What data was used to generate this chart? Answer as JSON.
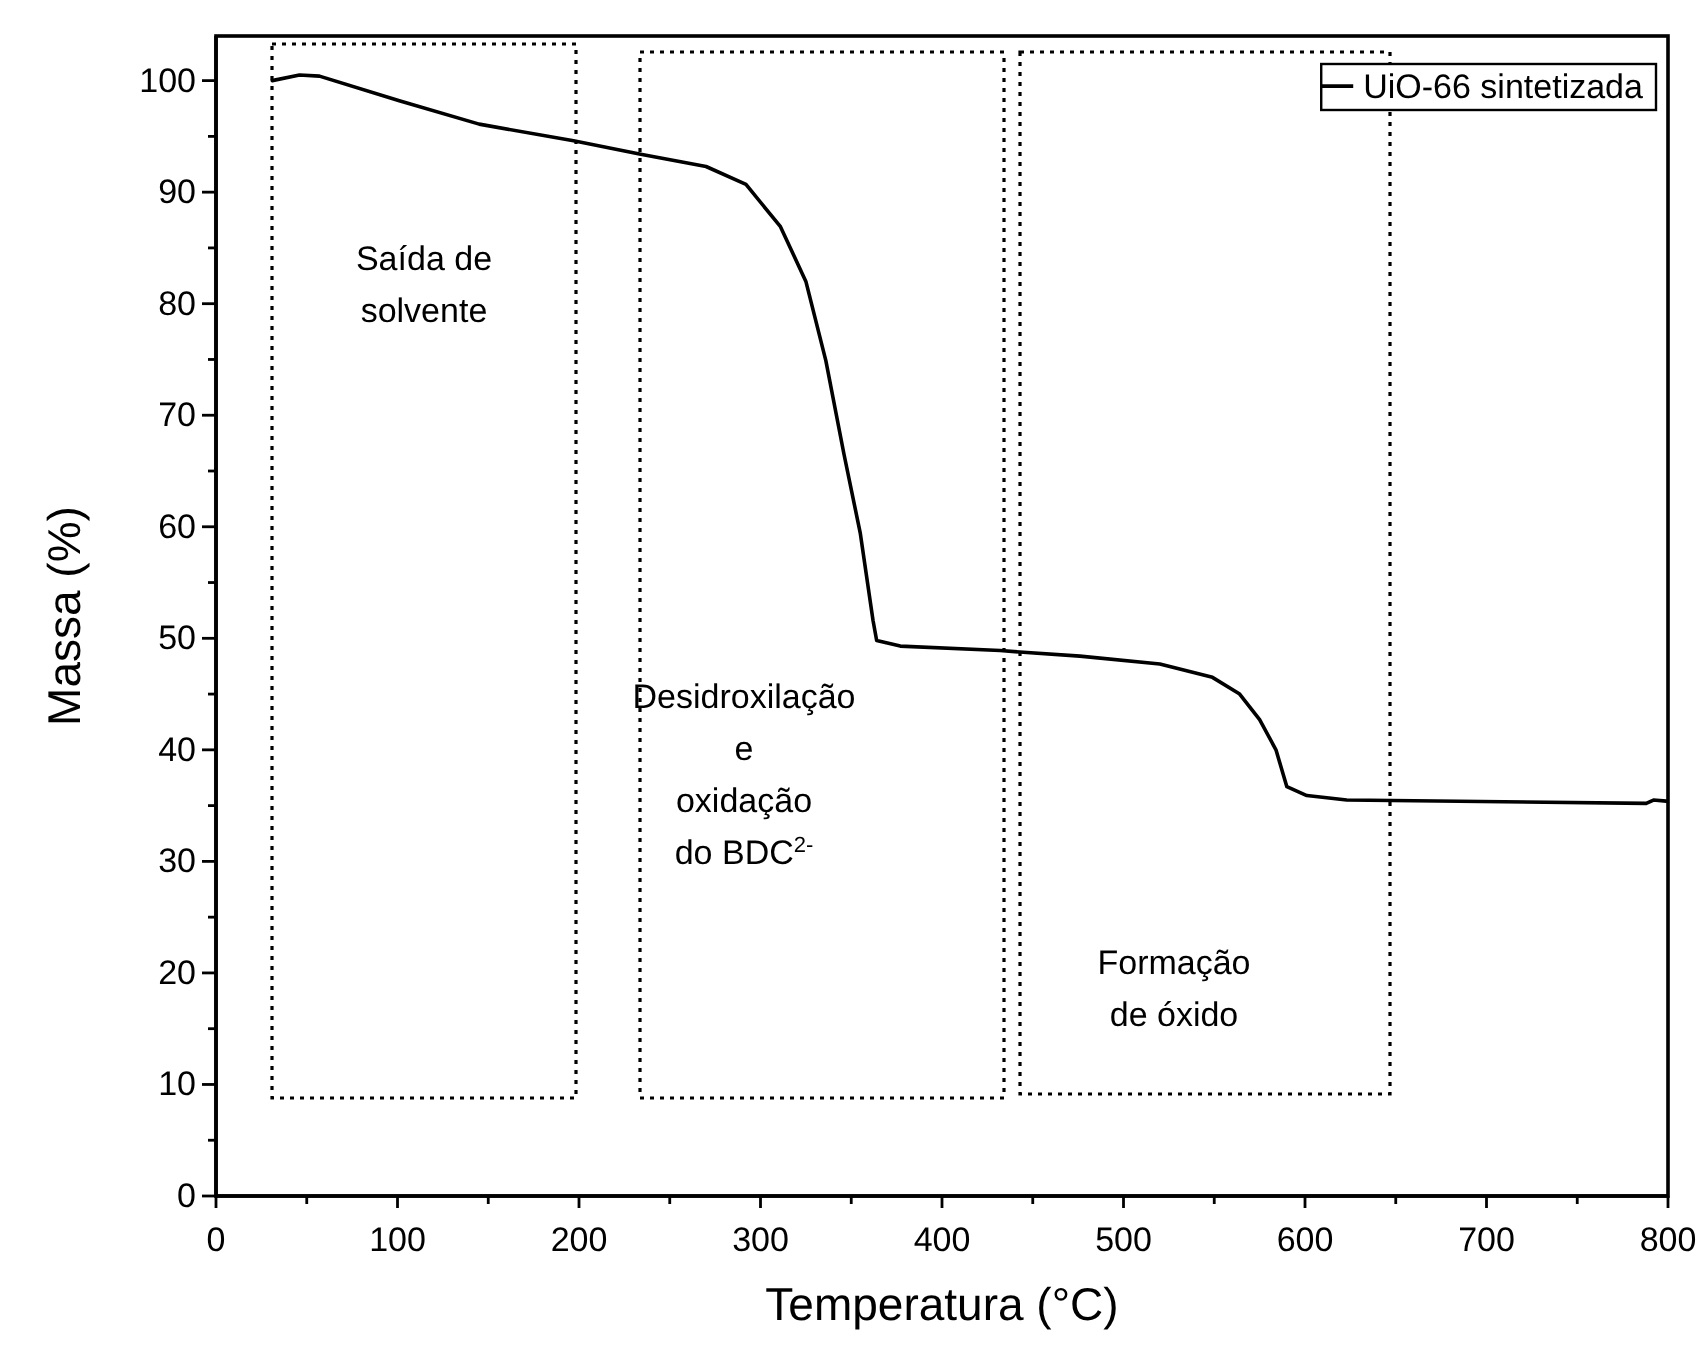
{
  "chart_data": {
    "type": "line",
    "xlabel": "Temperatura (°C)",
    "ylabel": "Massa (%)",
    "xlim": [
      0,
      800
    ],
    "ylim": [
      0,
      104
    ],
    "xticks": [
      0,
      {
        "value": 50,
        "label": null
      },
      100,
      {
        "value": 150,
        "label": null
      },
      200,
      {
        "value": 250,
        "label": null
      },
      300,
      {
        "value": 350,
        "label": null
      },
      400,
      {
        "value": 450,
        "label": null
      },
      500,
      {
        "value": 550,
        "label": null
      },
      600,
      {
        "value": 650,
        "label": null
      },
      700,
      {
        "value": 750,
        "label": null
      },
      800
    ],
    "yticks": [
      0,
      {
        "value": 5,
        "label": null
      },
      10,
      {
        "value": 15,
        "label": null
      },
      20,
      {
        "value": 25,
        "label": null
      },
      30,
      {
        "value": 35,
        "label": null
      },
      40,
      {
        "value": 45,
        "label": null
      },
      50,
      {
        "value": 55,
        "label": null
      },
      60,
      {
        "value": 65,
        "label": null
      },
      70,
      {
        "value": 75,
        "label": null
      },
      80,
      {
        "value": 85,
        "label": null
      },
      90,
      {
        "value": 95,
        "label": null
      },
      100
    ],
    "legend": "top right",
    "line_style": "solid",
    "marker": "none",
    "grid": false,
    "series": [
      {
        "name": "UiO-66 sintetizada",
        "color": "#000000",
        "x": [
          31,
          46,
          57,
          101,
          145,
          197,
          234,
          270,
          292,
          311,
          325,
          336,
          346,
          355,
          362,
          364,
          377,
          432,
          476,
          520,
          549,
          564,
          575,
          584,
          590,
          601,
          623,
          788,
          792,
          799
        ],
        "values": [
          100,
          100.5,
          100.4,
          98.2,
          96.1,
          94.6,
          93.4,
          92.3,
          90.7,
          86.9,
          82,
          74.9,
          66.5,
          59.4,
          51.6,
          49.8,
          49.3,
          48.9,
          48.4,
          47.7,
          46.5,
          45,
          42.7,
          40,
          36.7,
          35.9,
          35.5,
          35.2,
          35.5,
          35.4
        ]
      }
    ],
    "annotations": [
      "Saída de\nsolvente",
      "Desidroxilação\ne\noxidação\ndo BDC$^{2-}$",
      "Formação\nde óxido"
    ]
  }
}
